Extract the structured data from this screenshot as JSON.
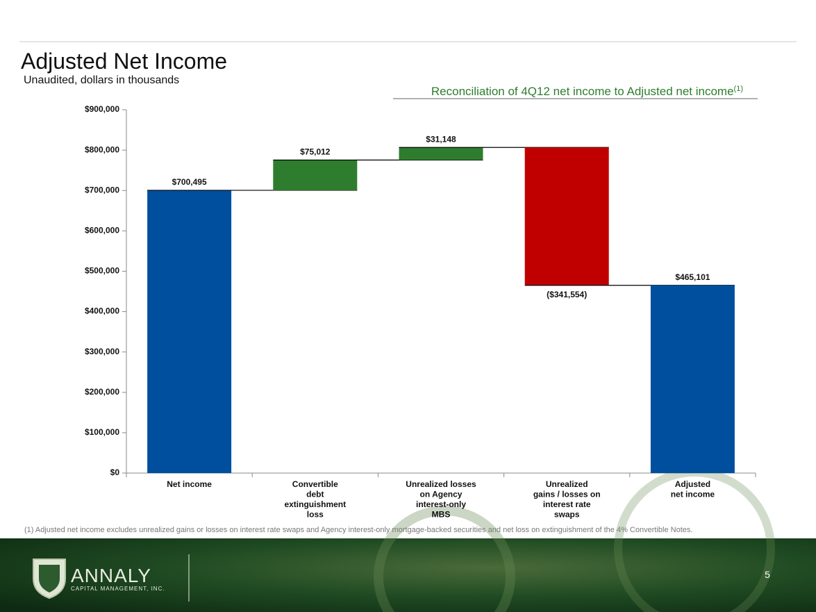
{
  "page": {
    "title": "Adjusted Net Income",
    "subtitle": "Unaudited, dollars in thousands",
    "footnote": "(1) Adjusted net income excludes unrealized gains or losses on interest rate swaps and Agency interest-only mortgage-backed securities and net loss on extinguishment of the 4% Convertible Notes.",
    "logo_name": "ANNALY",
    "logo_tagline": "CAPITAL MANAGEMENT, INC.",
    "page_number": "5"
  },
  "chart_data": {
    "type": "waterfall",
    "title": "Reconciliation of 4Q12 net income to Adjusted net income",
    "title_note": "(1)",
    "categories": [
      "Net income",
      "Convertible\ndebt\nextinguishment\nloss",
      "Unrealized losses\non Agency\ninterest-only\nMBS",
      "Unrealized\ngains / losses on\ninterest rate\nswaps",
      "Adjusted\nnet income"
    ],
    "values": [
      700495,
      75012,
      31148,
      -341554,
      465101
    ],
    "value_labels": [
      "$700,495",
      "$75,012",
      "$31,148",
      "($341,554)",
      "$465,101"
    ],
    "totals": [
      true,
      false,
      false,
      false,
      true
    ],
    "colors": [
      "#004f9f",
      "#2e7d2e",
      "#2e7d2e",
      "#c00000",
      "#004f9f"
    ],
    "ylim": [
      0,
      900000
    ],
    "yticks": [
      {
        "value": 0,
        "label": "$0"
      },
      {
        "value": 100000,
        "label": "$100,000"
      },
      {
        "value": 200000,
        "label": "$200,000"
      },
      {
        "value": 300000,
        "label": "$300,000"
      },
      {
        "value": 400000,
        "label": "$400,000"
      },
      {
        "value": 500000,
        "label": "$500,000"
      },
      {
        "value": 600000,
        "label": "$600,000"
      },
      {
        "value": 700000,
        "label": "$700,000"
      },
      {
        "value": 800000,
        "label": "$800,000"
      },
      {
        "value": 900000,
        "label": "$900,000"
      }
    ]
  }
}
